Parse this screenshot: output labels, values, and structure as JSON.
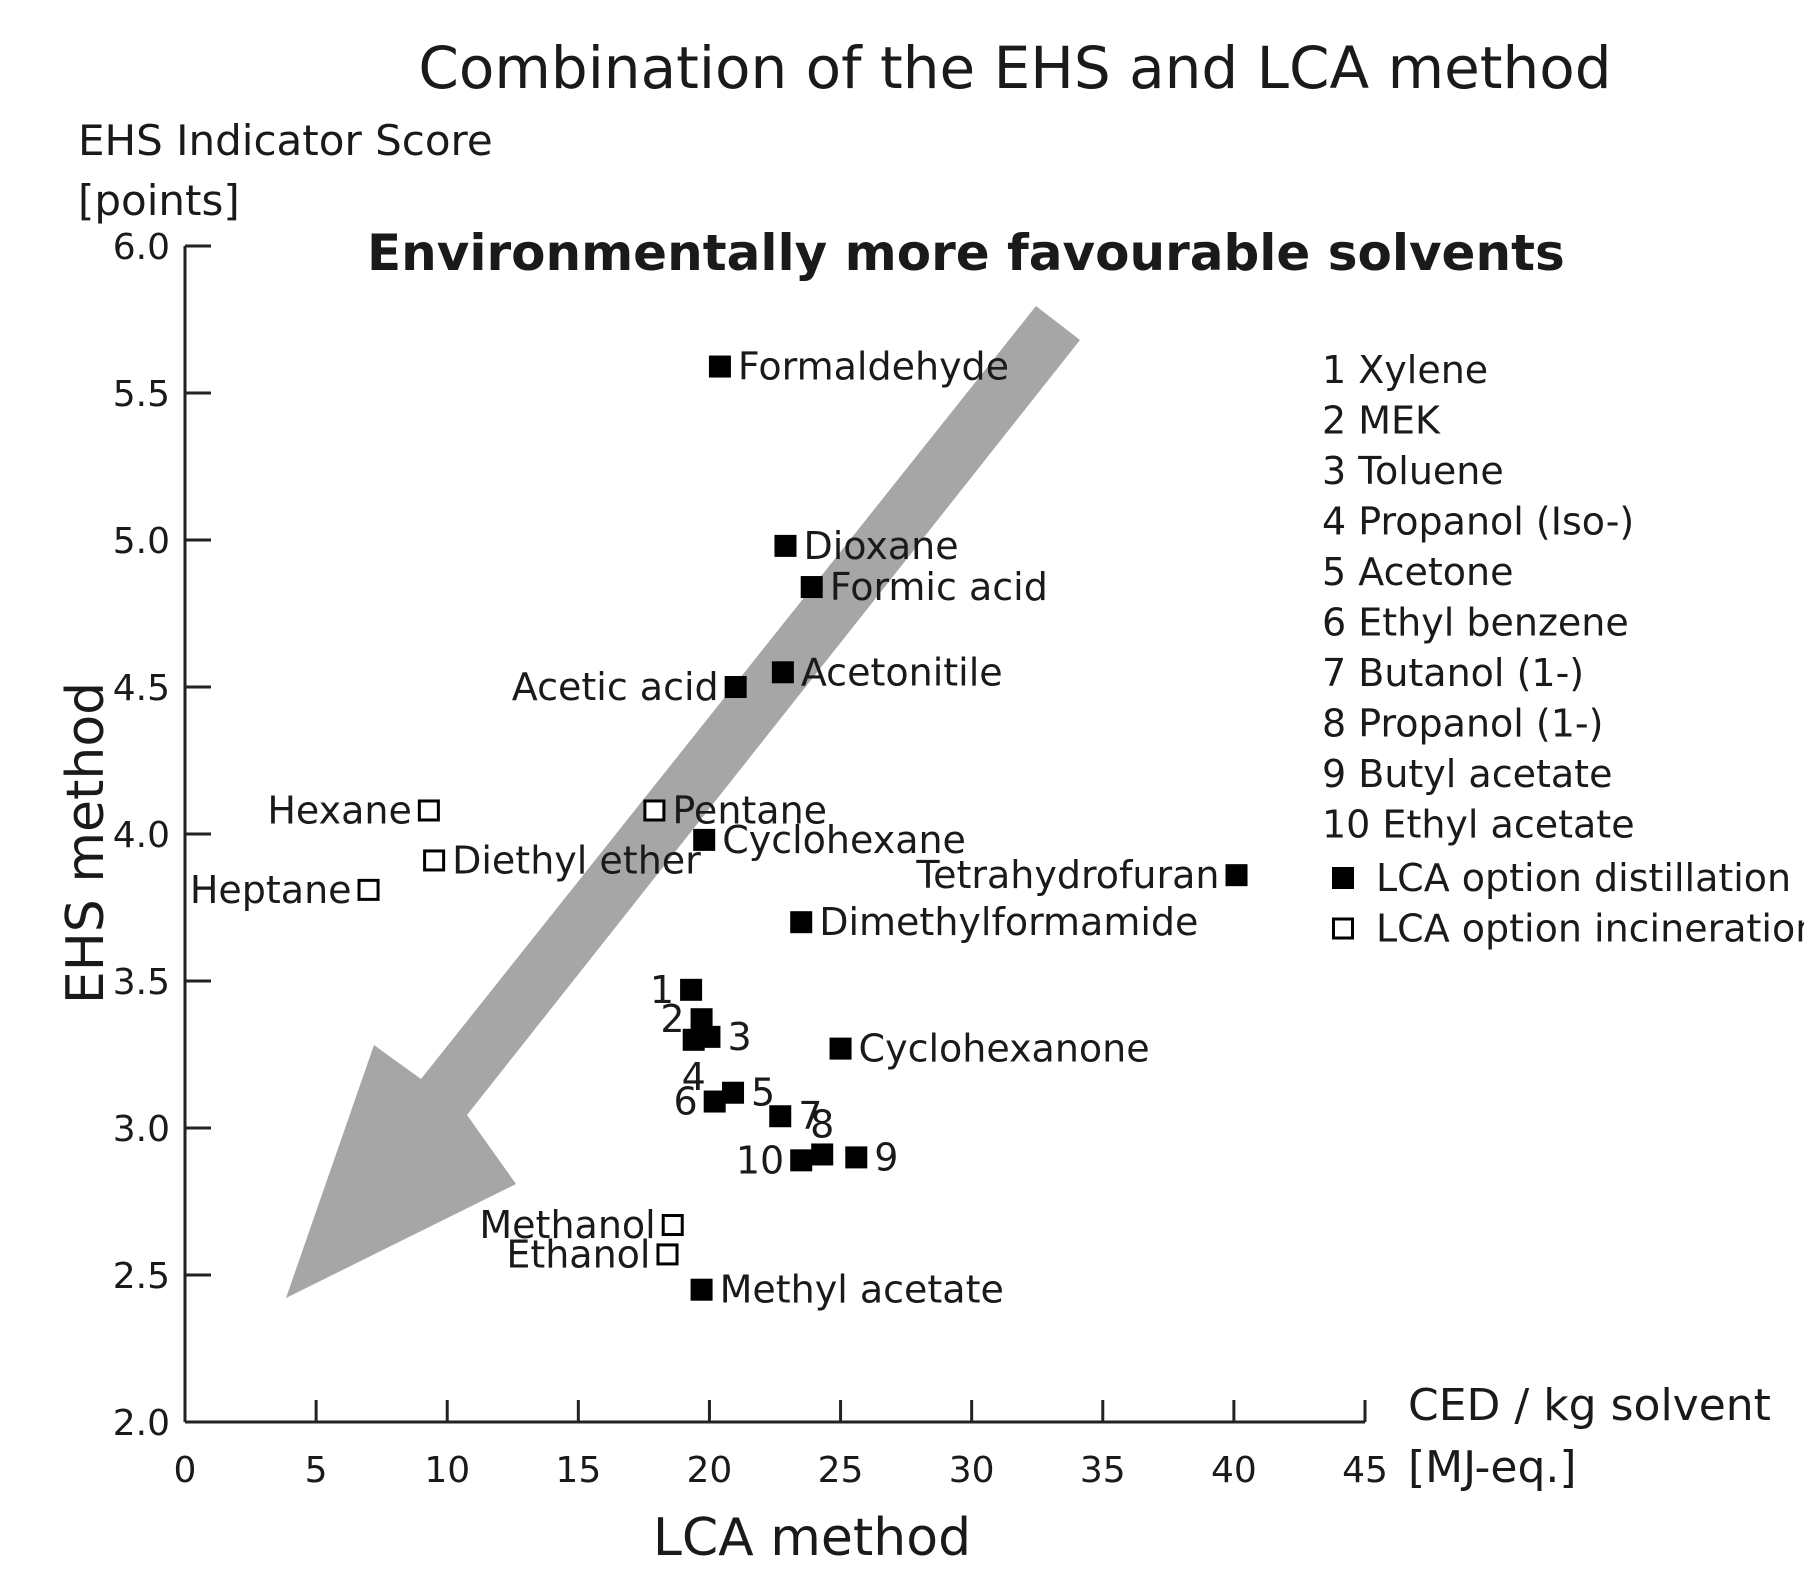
{
  "chart_data": {
    "type": "scatter",
    "title": "Combination of the EHS and LCA method",
    "annotation": "Environmentally more favourable solvents",
    "y_axis_title_top": [
      "EHS Indicator Score",
      "[points]"
    ],
    "y_axis_title_side": "EHS method",
    "x_axis_title_right": [
      "CED / kg solvent",
      "[MJ-eq.]"
    ],
    "x_axis_title_bottom": "LCA method",
    "xlim": [
      0,
      45
    ],
    "ylim": [
      2.0,
      6.0
    ],
    "x_ticks": [
      0,
      5,
      10,
      15,
      20,
      25,
      30,
      35,
      40,
      45
    ],
    "x_tick_labels": [
      "0",
      "5",
      "10",
      "15",
      "20",
      "25",
      "30",
      "35",
      "40",
      "45"
    ],
    "y_ticks": [
      2.0,
      2.5,
      3.0,
      3.5,
      4.0,
      4.5,
      5.0,
      5.5,
      6.0
    ],
    "y_tick_labels": [
      "2.0",
      "2.5",
      "3.0",
      "3.5",
      "4.0",
      "4.5",
      "5.0",
      "5.5",
      "6.0"
    ],
    "grid": false,
    "legend_position": "right",
    "series": [
      {
        "name": "LCA option distillation",
        "marker": "filled-square",
        "color": "#000000",
        "points": [
          {
            "label": "Formaldehyde",
            "x": 20.4,
            "y": 5.59,
            "label_side": "right"
          },
          {
            "label": "Dioxane",
            "x": 22.9,
            "y": 4.98,
            "label_side": "right"
          },
          {
            "label": "Formic acid",
            "x": 23.9,
            "y": 4.84,
            "label_side": "right"
          },
          {
            "label": "Acetonitile",
            "x": 22.8,
            "y": 4.55,
            "label_side": "right"
          },
          {
            "label": "Acetic acid",
            "x": 21.0,
            "y": 4.5,
            "label_side": "left"
          },
          {
            "label": "Cyclohexane",
            "x": 19.8,
            "y": 3.98,
            "label_side": "right"
          },
          {
            "label": "Tetrahydrofuran",
            "x": 40.1,
            "y": 3.86,
            "label_side": "left"
          },
          {
            "label": "Dimethylformamide",
            "x": 23.5,
            "y": 3.7,
            "label_side": "right"
          },
          {
            "label": "1",
            "x": 19.3,
            "y": 3.47,
            "label_side": "left"
          },
          {
            "label": "2",
            "x": 19.7,
            "y": 3.37,
            "label_side": "left"
          },
          {
            "label": "3",
            "x": 20.0,
            "y": 3.31,
            "label_side": "right"
          },
          {
            "label": "4",
            "x": 19.4,
            "y": 3.3,
            "label_side": "below"
          },
          {
            "label": "Cyclohexanone",
            "x": 25.0,
            "y": 3.27,
            "label_side": "right"
          },
          {
            "label": "5",
            "x": 20.9,
            "y": 3.12,
            "label_side": "right"
          },
          {
            "label": "6",
            "x": 20.2,
            "y": 3.09,
            "label_side": "left"
          },
          {
            "label": "7",
            "x": 22.7,
            "y": 3.04,
            "label_side": "right"
          },
          {
            "label": "8",
            "x": 24.3,
            "y": 2.91,
            "label_side": "above"
          },
          {
            "label": "9",
            "x": 25.6,
            "y": 2.9,
            "label_side": "right"
          },
          {
            "label": "10",
            "x": 23.5,
            "y": 2.89,
            "label_side": "left"
          },
          {
            "label": "Methyl acetate",
            "x": 19.7,
            "y": 2.45,
            "label_side": "right"
          }
        ]
      },
      {
        "name": "LCA option incineration",
        "marker": "open-square",
        "color": "#000000",
        "points": [
          {
            "label": "Hexane",
            "x": 9.3,
            "y": 4.08,
            "label_side": "left"
          },
          {
            "label": "Pentane",
            "x": 17.9,
            "y": 4.08,
            "label_side": "right"
          },
          {
            "label": "Diethyl ether",
            "x": 9.5,
            "y": 3.91,
            "label_side": "right"
          },
          {
            "label": "Heptane",
            "x": 7.0,
            "y": 3.81,
            "label_side": "left"
          },
          {
            "label": "Methanol",
            "x": 18.6,
            "y": 2.67,
            "label_side": "left"
          },
          {
            "label": "Ethanol",
            "x": 18.4,
            "y": 2.57,
            "label_side": "left"
          }
        ]
      }
    ],
    "key": [
      "1 Xylene",
      "2 MEK",
      "3 Toluene",
      "4 Propanol (Iso-)",
      "5 Acetone",
      "6 Ethyl benzene",
      "7 Butanol (1-)",
      "8 Propanol (1-)",
      "9 Butyl acetate",
      "10 Ethyl acetate"
    ],
    "legend": [
      {
        "label": "LCA option distillation",
        "marker": "filled-square"
      },
      {
        "label": "LCA option incineration",
        "marker": "open-square"
      }
    ],
    "arrow_color": "#a6a6a6",
    "annotation_color": "#b3b3b3"
  }
}
